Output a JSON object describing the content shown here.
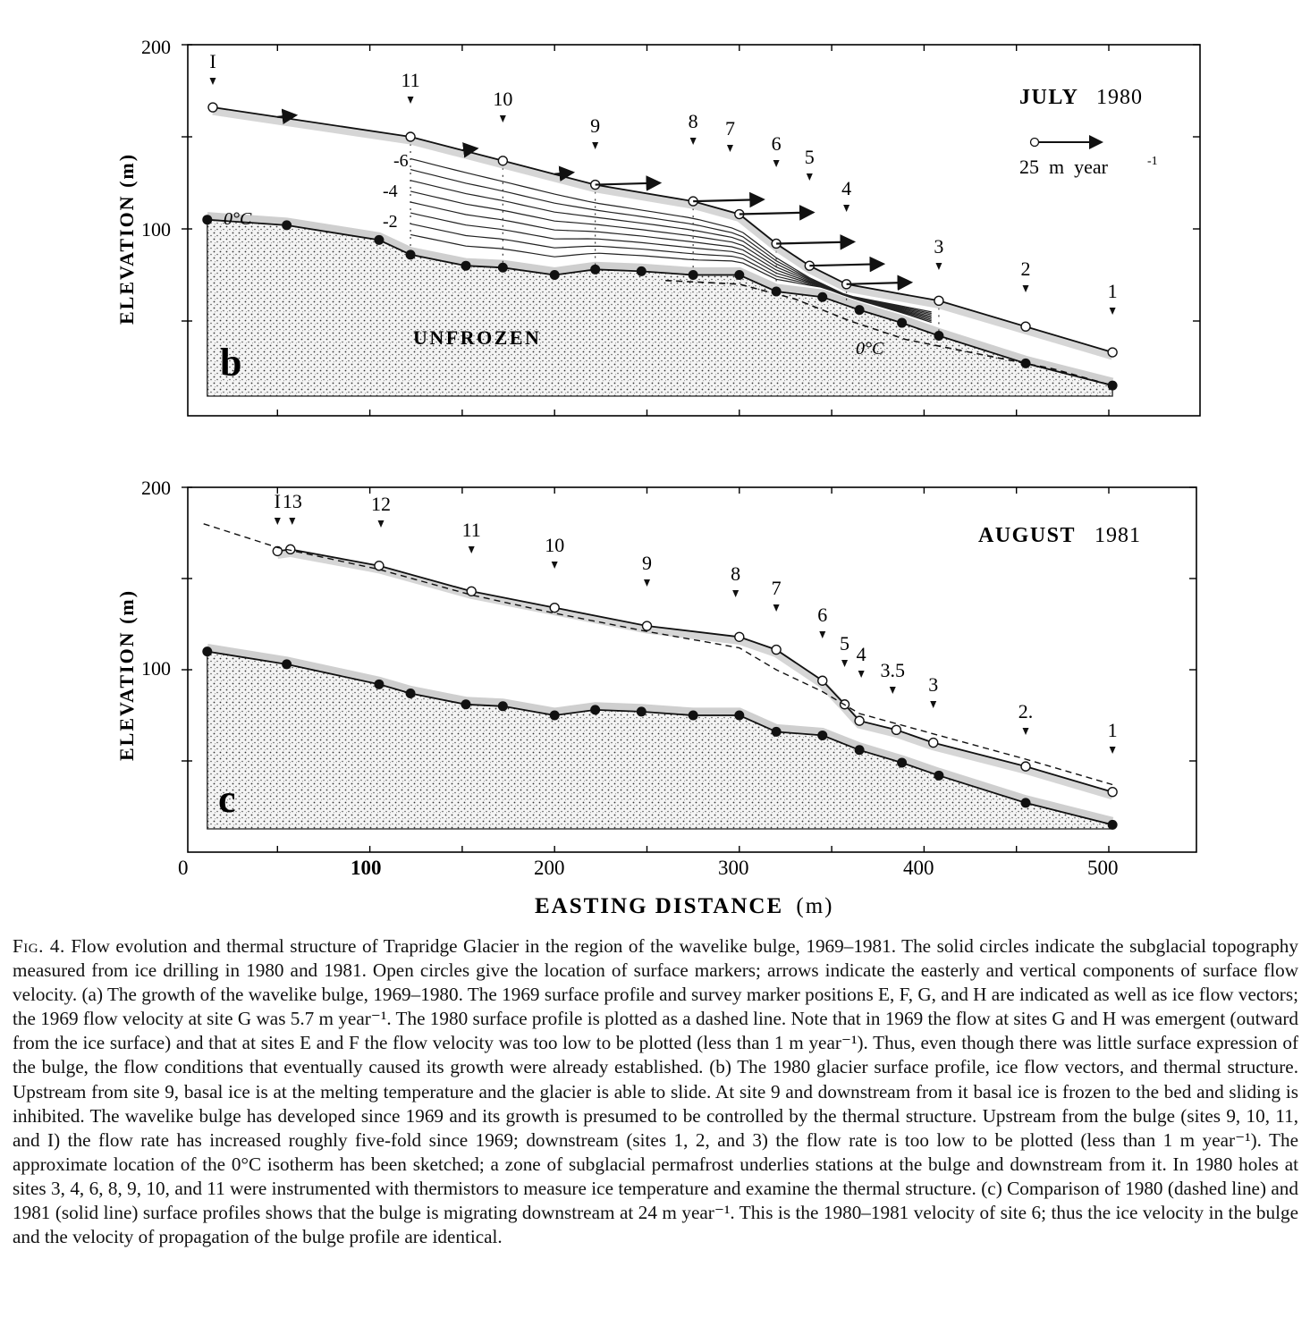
{
  "figure": {
    "x_axis_label": "EASTING DISTANCE",
    "x_axis_unit": "(m)",
    "x_ticks": [
      "0",
      "100",
      "200",
      "300",
      "400",
      "500"
    ],
    "y_axis_label": "ELEVATION (m)",
    "y_ticks": [
      "200",
      "100"
    ],
    "panel_b": {
      "letter": "b",
      "date_bold": "JULY",
      "date_year": "1980",
      "legend_label": "25  m  year",
      "legend_exponent": "-1",
      "unfrozen_label": "UNFROZEN",
      "isotherm_label_top": "0°C",
      "isotherm_label_bottom": "0°C",
      "contour_labels": [
        "-6",
        "-4",
        "-2"
      ],
      "site_labels": [
        "I",
        "11",
        "10",
        "9",
        "8",
        "7",
        "6",
        "5",
        "4",
        "3",
        "2",
        "1"
      ]
    },
    "panel_c": {
      "letter": "c",
      "date_bold": "AUGUST",
      "date_year": "1981",
      "site_labels": [
        "I",
        "13",
        "12",
        "11",
        "10",
        "9",
        "8",
        "7",
        "6",
        "5",
        "4",
        "3.5",
        "3",
        "2.",
        "1"
      ]
    }
  },
  "chart_data": [
    {
      "type": "line",
      "panel": "b",
      "title": "JULY 1980",
      "xlabel": "EASTING DISTANCE (m)",
      "ylabel": "ELEVATION (m)",
      "xlim": [
        0,
        540
      ],
      "ylim": [
        0,
        200
      ],
      "series": [
        {
          "name": "surface",
          "x": [
            15,
            122,
            172,
            222,
            275,
            300,
            320,
            338,
            358,
            408,
            455,
            502
          ],
          "y": [
            166,
            150,
            137,
            124,
            115,
            108,
            92,
            80,
            70,
            61,
            47,
            33
          ]
        },
        {
          "name": "bed",
          "x": [
            12,
            55,
            105,
            122,
            152,
            172,
            200,
            222,
            247,
            275,
            300,
            320,
            345,
            365,
            388,
            408,
            455,
            502
          ],
          "y": [
            105,
            102,
            94,
            86,
            80,
            79,
            75,
            78,
            77,
            75,
            75,
            66,
            63,
            56,
            49,
            42,
            27,
            15
          ]
        }
      ],
      "velocity_arrows_x": [
        50,
        150,
        200,
        222,
        275,
        300,
        320,
        338,
        358
      ],
      "velocity_arrows_length_m_per_year": [
        10,
        8,
        10,
        35,
        38,
        40,
        42,
        40,
        35
      ]
    },
    {
      "type": "line",
      "panel": "c",
      "title": "AUGUST 1981",
      "xlabel": "EASTING DISTANCE (m)",
      "ylabel": "ELEVATION (m)",
      "xlim": [
        0,
        540
      ],
      "ylim": [
        0,
        200
      ],
      "series": [
        {
          "name": "1981 surface",
          "x": [
            50,
            57,
            105,
            155,
            200,
            250,
            300,
            320,
            345,
            357,
            365,
            385,
            405,
            455,
            502
          ],
          "y": [
            165,
            166,
            157,
            143,
            134,
            124,
            118,
            111,
            94,
            81,
            72,
            67,
            60,
            47,
            33
          ]
        },
        {
          "name": "1980 surface",
          "x": [
            10,
            50,
            105,
            155,
            200,
            250,
            300,
            320,
            345,
            365,
            408,
            455,
            502
          ],
          "y": [
            180,
            167,
            155,
            141,
            131,
            121,
            112,
            100,
            88,
            76,
            64,
            51,
            37
          ]
        },
        {
          "name": "bed",
          "x": [
            12,
            55,
            105,
            122,
            152,
            172,
            200,
            222,
            247,
            275,
            300,
            320,
            345,
            365,
            388,
            408,
            455,
            502
          ],
          "y": [
            110,
            103,
            92,
            87,
            81,
            80,
            75,
            78,
            77,
            75,
            75,
            66,
            64,
            56,
            49,
            42,
            27,
            15
          ]
        }
      ]
    }
  ],
  "caption": {
    "label": "Fig. 4.",
    "text": "Flow evolution and thermal structure of Trapridge Glacier in the region of the wavelike bulge, 1969–1981. The solid circles indicate the subglacial topography measured from ice drilling in 1980 and 1981. Open circles give the location of surface markers; arrows indicate the easterly and vertical components of surface flow velocity. (a) The growth of the wavelike bulge, 1969–1980. The 1969 surface profile and survey marker positions E, F, G, and H are indicated as well as ice flow vectors; the 1969 flow velocity at site G was 5.7 m year⁻¹. The 1980 surface profile is plotted as a dashed line. Note that in 1969 the flow at sites G and H was emergent (outward from the ice surface) and that at sites E and F the flow velocity was too low to be plotted (less than 1 m year⁻¹). Thus, even though there was little surface expression of the bulge, the flow conditions that eventually caused its growth were already established. (b) The 1980 glacier surface profile, ice flow vectors, and thermal structure. Upstream from site 9, basal ice is at the melting temperature and the glacier is able to slide. At site 9 and downstream from it basal ice is frozen to the bed and sliding is inhibited. The wavelike bulge has developed since 1969 and its growth is presumed to be controlled by the thermal structure. Upstream from the bulge (sites 9, 10, 11, and I) the flow rate has increased roughly five-fold since 1969; downstream (sites 1, 2, and 3) the flow rate is too low to be plotted (less than 1 m year⁻¹). The approximate location of the 0°C isotherm has been sketched; a zone of subglacial permafrost underlies stations at the bulge and downstream from it. In 1980 holes at sites 3, 4, 6, 8, 9, 10, and 11 were instrumented with thermistors to measure ice temperature and examine the thermal structure. (c) Comparison of 1980 (dashed line) and 1981 (solid line) surface profiles shows that the bulge is migrating downstream at 24 m year⁻¹. This is the 1980–1981 velocity of site 6; thus the ice velocity in the bulge and the velocity of propagation of the bulge profile are identical."
  }
}
